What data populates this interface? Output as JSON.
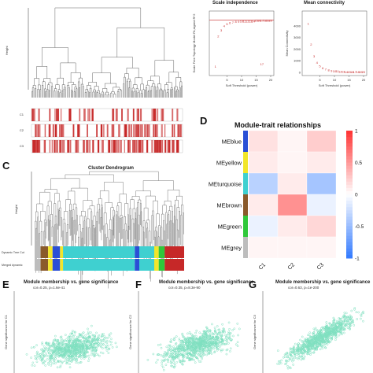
{
  "panel_labels": {
    "C": "C",
    "D": "D",
    "E": "E",
    "F": "F",
    "G": "G"
  },
  "colors": {
    "red": "#c62828",
    "blue_low": "#3b6fd8",
    "scatter": "#7fe0c0",
    "module_blue": "#2a4fd6",
    "module_yellow": "#f2e62a",
    "module_turquoise": "#3fd0d0",
    "module_brown": "#8a5a2b",
    "module_green": "#2fc83a",
    "module_grey": "#bdbdbd"
  },
  "chart_data": [
    {
      "id": "A",
      "type": "dendrogram",
      "ylabel": "Height",
      "row_labels": [
        "C1",
        "C2",
        "C3"
      ]
    },
    {
      "id": "B1",
      "type": "scatter",
      "title": "Scale independence",
      "xlabel": "Soft Threshold (power)",
      "ylabel": "Scale Free Topology Model Fit,signed R^2",
      "x": [
        1,
        2,
        3,
        4,
        5,
        6,
        7,
        8,
        9,
        10,
        11,
        12,
        13,
        14,
        15,
        16,
        17,
        18,
        19,
        20
      ],
      "y": [
        0.1,
        0.62,
        0.72,
        0.8,
        0.83,
        0.85,
        0.86,
        0.87,
        0.87,
        0.88,
        0.88,
        0.88,
        0.88,
        0.88,
        0.89,
        0.89,
        0.89,
        0.89,
        0.89,
        0.89
      ],
      "outlier": {
        "x": 17,
        "y": 0.12
      },
      "hline": 0.9,
      "xlim": [
        0,
        20
      ],
      "ylim": [
        0,
        1
      ],
      "xticks": [
        "5",
        "10",
        "15",
        "20"
      ]
    },
    {
      "id": "B2",
      "type": "scatter",
      "title": "Mean connectivity",
      "xlabel": "Soft Threshold (power)",
      "ylabel": "Mean Connectivity",
      "x": [
        1,
        2,
        3,
        4,
        5,
        6,
        7,
        8,
        9,
        10,
        11,
        12,
        13,
        14,
        15,
        16,
        17,
        18,
        19,
        20
      ],
      "y": [
        4200,
        2400,
        1400,
        850,
        550,
        380,
        270,
        200,
        150,
        115,
        90,
        72,
        58,
        47,
        39,
        33,
        28,
        24,
        21,
        18
      ],
      "xlim": [
        0,
        20
      ],
      "ylim": [
        0,
        5000
      ],
      "xticks": [
        "5",
        "10",
        "15",
        "20"
      ],
      "yticks": [
        "0",
        "1000",
        "2000",
        "3000",
        "4000"
      ]
    },
    {
      "id": "C",
      "type": "dendrogram",
      "title": "Cluster Dendrogram",
      "ylabel": "Height",
      "row_labels": [
        "Dynamic Tree Cut",
        "Merged dynamic"
      ],
      "module_segments": [
        {
          "module": "grey",
          "width": 0.04
        },
        {
          "module": "brown",
          "width": 0.05
        },
        {
          "module": "yellow",
          "width": 0.03
        },
        {
          "module": "blue",
          "width": 0.05
        },
        {
          "module": "yellow",
          "width": 0.02
        },
        {
          "module": "turquoise",
          "width": 0.48
        },
        {
          "module": "blue",
          "width": 0.03
        },
        {
          "module": "turquoise",
          "width": 0.1
        },
        {
          "module": "yellow",
          "width": 0.03
        },
        {
          "module": "green",
          "width": 0.04
        },
        {
          "module": "red",
          "width": 0.13
        }
      ]
    },
    {
      "id": "D",
      "type": "heatmap",
      "title": "Module-trait relationships",
      "rows": [
        "MEblue",
        "MEyellow",
        "MEturquoise",
        "MEbrown",
        "MEgreen",
        "MEgrey"
      ],
      "columns": [
        "C1",
        "C2",
        "C3"
      ],
      "values": [
        [
          0.15,
          0.05,
          0.25
        ],
        [
          0.1,
          0.05,
          0.1
        ],
        [
          -0.35,
          0.1,
          -0.45
        ],
        [
          0.1,
          0.55,
          -0.1
        ],
        [
          -0.1,
          0.1,
          0.2
        ],
        [
          0.05,
          0.05,
          0.05
        ]
      ],
      "legend_ticks": [
        "1",
        "0.5",
        "0",
        "-0.5",
        "-1"
      ],
      "range": [
        -1,
        1
      ]
    },
    {
      "id": "E",
      "type": "scatter",
      "title": "Module membership vs. gene significance",
      "subtitle": "cor=0.25, p=1.6e-41",
      "ylabel": "Gene significance for C1"
    },
    {
      "id": "F",
      "type": "scatter",
      "title": "Module membership vs. gene significance",
      "subtitle": "cor=0.35, p=8.3e-90",
      "ylabel": "Gene significance for C2"
    },
    {
      "id": "G",
      "type": "scatter",
      "title": "Module membership vs. gene significance",
      "subtitle": "cor=0.63, p=1e-200",
      "ylabel": "Gene significance for C3"
    }
  ]
}
